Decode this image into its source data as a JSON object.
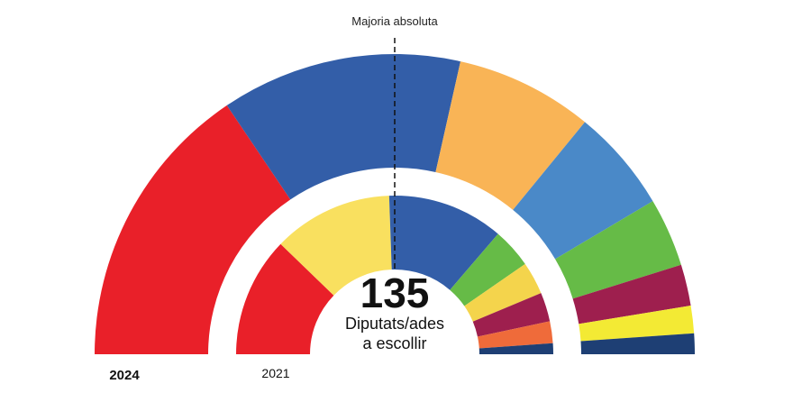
{
  "chart_data": [
    {
      "type": "parliament",
      "ring": "outer",
      "year_label": "2024",
      "series": [
        {
          "name": "seg-1",
          "seats": 42,
          "color": "#e92029"
        },
        {
          "name": "seg-2",
          "seats": 35,
          "color": "#335ea8"
        },
        {
          "name": "seg-3",
          "seats": 20,
          "color": "#f9b456"
        },
        {
          "name": "seg-4",
          "seats": 15,
          "color": "#4a89c8"
        },
        {
          "name": "seg-5",
          "seats": 10,
          "color": "#66bb47"
        },
        {
          "name": "seg-6",
          "seats": 6,
          "color": "#9e1f4e"
        },
        {
          "name": "seg-7",
          "seats": 4,
          "color": "#f3ea34"
        },
        {
          "name": "seg-8",
          "seats": 3,
          "color": "#1e3f74"
        }
      ]
    },
    {
      "type": "parliament",
      "ring": "inner",
      "year_label": "2021",
      "series": [
        {
          "name": "seg-1",
          "seats": 33,
          "color": "#e92029"
        },
        {
          "name": "seg-2",
          "seats": 33,
          "color": "#f9e05f"
        },
        {
          "name": "seg-3",
          "seats": 32,
          "color": "#335ea8"
        },
        {
          "name": "seg-4",
          "seats": 11,
          "color": "#66bb47"
        },
        {
          "name": "seg-5",
          "seats": 9,
          "color": "#f4d44c"
        },
        {
          "name": "seg-6",
          "seats": 8,
          "color": "#9e1f4e"
        },
        {
          "name": "seg-7",
          "seats": 6,
          "color": "#ef6b3a"
        },
        {
          "name": "seg-8",
          "seats": 3,
          "color": "#1e3f74"
        }
      ]
    }
  ],
  "majority_label": "Majoria absoluta",
  "majority_seats": 68,
  "total_seats": "135",
  "center_line1": "Diputats/ades",
  "center_line2": "a escollir"
}
